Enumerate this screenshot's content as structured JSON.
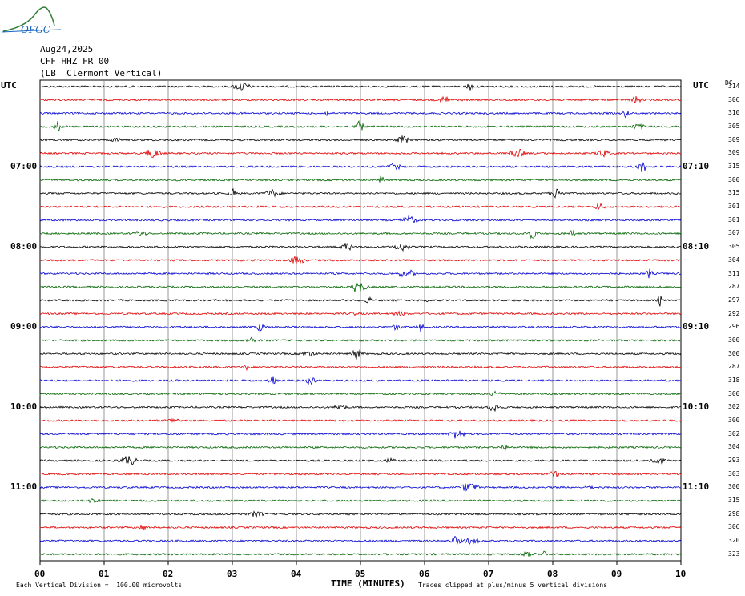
{
  "header": {
    "logo_text": "OFGC",
    "date": "Aug24,2025",
    "channel": "CFF HHZ FR 00",
    "location": "(LB  Clermont Vertical)"
  },
  "left_axis_label": "UTC",
  "right_axis_label": "UTC",
  "dc_label": "DC",
  "colors": {
    "trace_cycle": [
      "#000000",
      "#e00000",
      "#0000d0",
      "#006400"
    ],
    "grid": "#808080"
  },
  "chart_data": {
    "type": "line",
    "xlabel": "TIME (MINUTES)",
    "xlim": [
      0,
      10
    ],
    "x_ticks": [
      "00",
      "01",
      "02",
      "03",
      "04",
      "05",
      "06",
      "07",
      "08",
      "09",
      "10"
    ],
    "hour_labels_left": [
      {
        "row": 6,
        "label": "07:00"
      },
      {
        "row": 12,
        "label": "08:00"
      },
      {
        "row": 18,
        "label": "09:00"
      },
      {
        "row": 24,
        "label": "10:00"
      },
      {
        "row": 30,
        "label": "11:00"
      }
    ],
    "hour_labels_right": [
      {
        "row": 6,
        "label": "07:10"
      },
      {
        "row": 12,
        "label": "08:10"
      },
      {
        "row": 18,
        "label": "09:10"
      },
      {
        "row": 24,
        "label": "10:10"
      },
      {
        "row": 30,
        "label": "11:10"
      }
    ],
    "dc_offsets": [
      314,
      306,
      310,
      305,
      309,
      309,
      315,
      300,
      315,
      301,
      301,
      307,
      305,
      304,
      311,
      287,
      297,
      292,
      296,
      300,
      300,
      287,
      318,
      300,
      302,
      300,
      302,
      304,
      293,
      303,
      300,
      315,
      298,
      306,
      320,
      323
    ]
  },
  "footer": {
    "scale_note": "Each Vertical Division =  100.00 microvolts",
    "clip_note": "Traces clipped at plus/minus 5 vertical divisions"
  }
}
